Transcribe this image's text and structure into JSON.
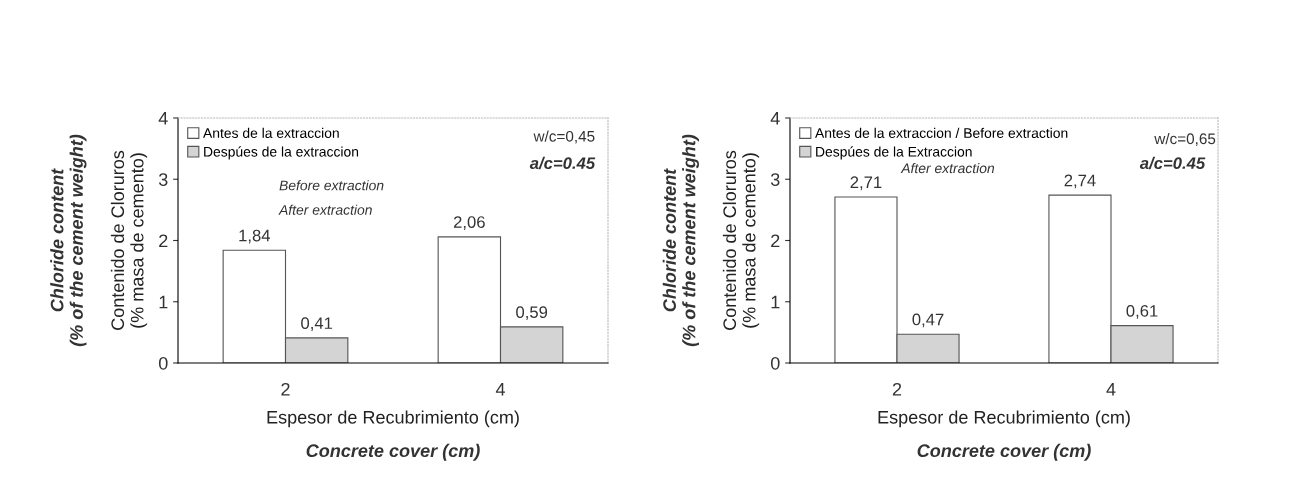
{
  "chart_data": [
    {
      "type": "bar",
      "categories": [
        "2",
        "4"
      ],
      "ylim": [
        0,
        4
      ],
      "yticks": [
        0,
        1,
        2,
        3,
        4
      ],
      "xlabel": "Espesor de Recubrimiento (cm)",
      "ylabel": "Contenido de Cloruros\n(% masa de cemento)",
      "legend": "top left",
      "grid": false,
      "series": [
        {
          "name": "Antes de la extraccion",
          "color": "#ffffff",
          "values": [
            1.84,
            2.06
          ],
          "value_labels": [
            "1,84",
            "2,06"
          ]
        },
        {
          "name": "Despúes de la extraccion",
          "color": "#d4d4d4",
          "values": [
            0.41,
            0.59
          ],
          "value_labels": [
            "0,41",
            "0,59"
          ]
        }
      ],
      "annotations": [
        "Chloride content\n(% of the cement weight)",
        "Concrete cover (cm)",
        "Before extraction",
        "After extraction",
        "w/c=0,45",
        "a/c=0.45"
      ]
    },
    {
      "type": "bar",
      "categories": [
        "2",
        "4"
      ],
      "ylim": [
        0,
        4
      ],
      "yticks": [
        0,
        1,
        2,
        3,
        4
      ],
      "xlabel": "Espesor de Recubrimiento (cm)",
      "ylabel": "Contenido de Cloruros\n(% masa de cemento)",
      "legend": "top left",
      "grid": false,
      "series": [
        {
          "name": "Antes de la extraccion / Before extraction",
          "color": "#ffffff",
          "values": [
            2.71,
            2.74
          ],
          "value_labels": [
            "2,71",
            "2,74"
          ]
        },
        {
          "name": "Despúes de la Extraccion",
          "color": "#d4d4d4",
          "values": [
            0.47,
            0.61
          ],
          "value_labels": [
            "0,47",
            "0,61"
          ]
        }
      ],
      "annotations": [
        "Chloride content\n(% of the cement weight)",
        "Concrete cover (cm)",
        "After extraction",
        "w/c=0,65",
        "a/c=0.45"
      ]
    }
  ]
}
